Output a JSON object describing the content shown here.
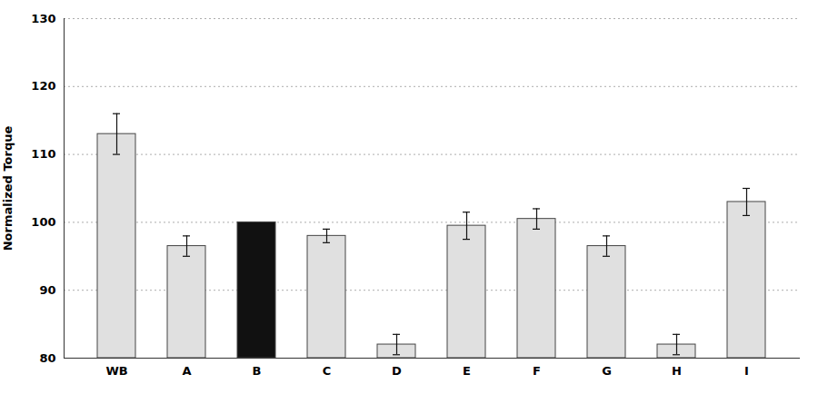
{
  "chart_data": {
    "type": "bar",
    "categories": [
      "WB",
      "A",
      "B",
      "C",
      "D",
      "E",
      "F",
      "G",
      "H",
      "I"
    ],
    "values": [
      113.0,
      96.5,
      100.0,
      98.0,
      82.0,
      99.5,
      100.5,
      96.5,
      82.0,
      103.0
    ],
    "errors": [
      3.0,
      1.5,
      0.0,
      1.0,
      1.5,
      2.0,
      1.5,
      1.5,
      1.5,
      2.0
    ],
    "colors": [
      "#e0e0e0",
      "#e0e0e0",
      "#111111",
      "#e0e0e0",
      "#e0e0e0",
      "#e0e0e0",
      "#e0e0e0",
      "#e0e0e0",
      "#e0e0e0",
      "#e0e0e0"
    ],
    "ylabel": "Normalized Torque",
    "ylim": [
      80,
      130
    ],
    "yticks": [
      80,
      90,
      100,
      110,
      120,
      130
    ],
    "grid": true
  }
}
